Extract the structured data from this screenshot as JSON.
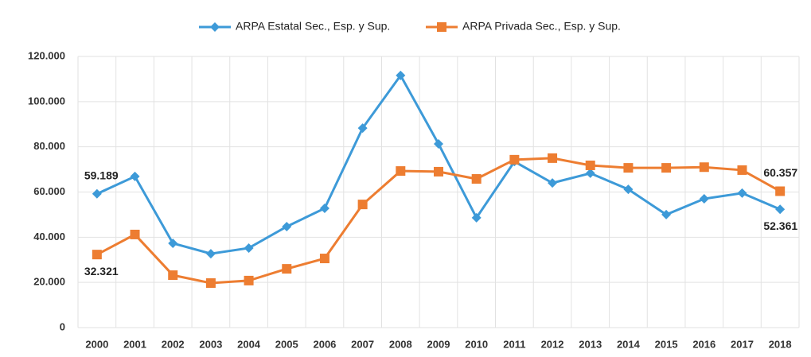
{
  "chart_data": {
    "type": "line",
    "categories": [
      "2000",
      "2001",
      "2002",
      "2003",
      "2004",
      "2005",
      "2006",
      "2007",
      "2008",
      "2009",
      "2010",
      "2011",
      "2012",
      "2013",
      "2014",
      "2015",
      "2016",
      "2017",
      "2018"
    ],
    "series": [
      {
        "name": "ARPA Estatal Sec., Esp. y Sup.",
        "color": "#3d9ad8",
        "marker": "diamond",
        "values": [
          59189,
          66900,
          37300,
          32700,
          35200,
          44700,
          52800,
          88300,
          111600,
          81300,
          48600,
          73500,
          64000,
          68300,
          61200,
          50000,
          57000,
          59500,
          52361
        ],
        "value_labels": [
          "59.189",
          null,
          null,
          null,
          null,
          null,
          null,
          null,
          null,
          null,
          null,
          null,
          null,
          null,
          null,
          null,
          null,
          null,
          "52.361"
        ]
      },
      {
        "name": "ARPA Privada Sec., Esp. y Sup.",
        "color": "#ed7d31",
        "marker": "square",
        "values": [
          32321,
          41200,
          23200,
          19700,
          20800,
          26000,
          30600,
          54500,
          69300,
          69000,
          65800,
          74300,
          75000,
          71800,
          70700,
          70700,
          71000,
          69700,
          60357
        ],
        "value_labels": [
          "32.321",
          null,
          null,
          null,
          null,
          null,
          null,
          null,
          null,
          null,
          null,
          null,
          null,
          null,
          null,
          null,
          null,
          null,
          "60.357"
        ]
      }
    ],
    "ylim": [
      0,
      120000
    ],
    "yticks": [
      0,
      {
        "value": 20000,
        "label": "20.000"
      },
      {
        "value": 40000,
        "label": "40.000"
      },
      {
        "value": 60000,
        "label": "60.000"
      },
      {
        "value": 80000,
        "label": "80.000"
      },
      {
        "value": 100000,
        "label": "100.000"
      },
      {
        "value": 120000,
        "label": "120.000"
      }
    ],
    "grid": true,
    "legend": "top"
  }
}
